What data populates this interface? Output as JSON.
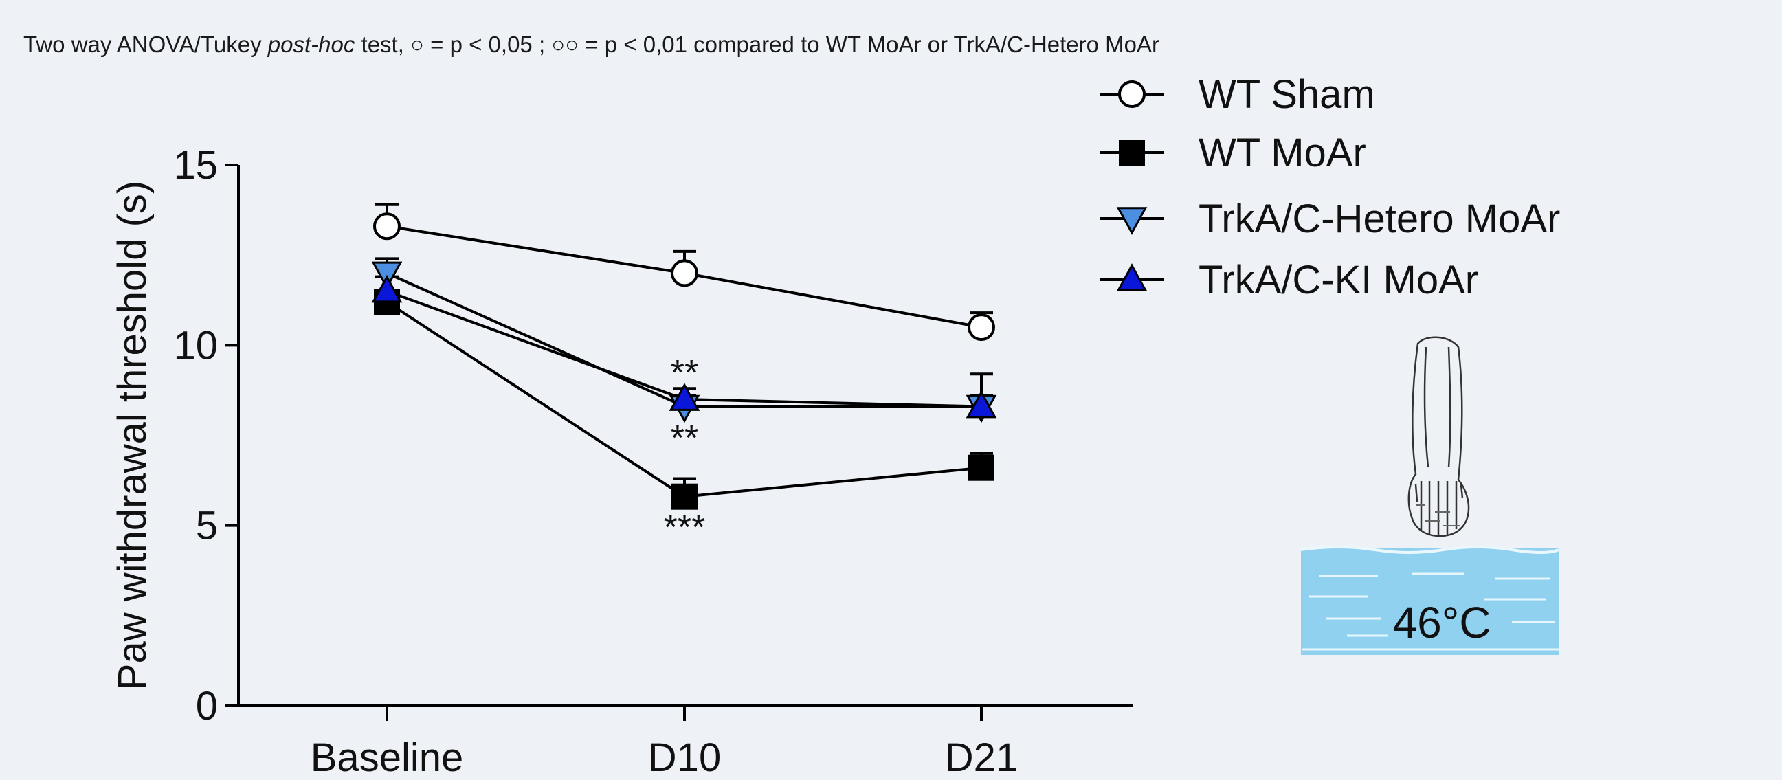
{
  "caption": {
    "part1": "Two way ANOVA/Tukey ",
    "italic": "post-hoc",
    "part2": " test, ○ = p < 0,05 ; ○○ = p < 0,01 compared to WT MoAr or TrkA/C-Hetero MoAr"
  },
  "illustration": {
    "temperature_label": "46°C"
  },
  "colors": {
    "background": "#eef2f6",
    "line": "#000000",
    "hetero_fill": "#4c8fe0",
    "ki_fill": "#0a16d8",
    "water": "#8fd1ef"
  },
  "chart_data": {
    "type": "line",
    "categories": [
      "Baseline",
      "D10",
      "D21"
    ],
    "ylabel": "Paw withdrawal threshold (s)",
    "ylim": [
      0,
      15
    ],
    "yticks": [
      0,
      5,
      10,
      15
    ],
    "grid": false,
    "legend_position": "top-right",
    "series": [
      {
        "name": "WT Sham",
        "marker": "open-circle",
        "values": [
          13.3,
          12.0,
          10.5
        ],
        "errors": [
          0.6,
          0.6,
          0.4
        ]
      },
      {
        "name": "WT MoAr",
        "marker": "filled-square",
        "values": [
          11.2,
          5.8,
          6.6
        ],
        "errors": [
          0.3,
          0.5,
          0.4
        ]
      },
      {
        "name": "TrkA/C-Hetero MoAr",
        "marker": "down-triangle",
        "values": [
          12.0,
          8.3,
          8.3
        ],
        "errors": [
          0.4,
          0.3,
          0.9
        ]
      },
      {
        "name": "TrkA/C-KI MoAr",
        "marker": "up-triangle",
        "values": [
          11.5,
          8.5,
          8.3
        ],
        "errors": [
          0.4,
          0.3,
          0.3
        ]
      }
    ],
    "annotations": [
      {
        "text": "**",
        "category": "D10",
        "anchor": "above"
      },
      {
        "text": "**",
        "category": "D10",
        "anchor": "below-triangle"
      },
      {
        "text": "***",
        "category": "D10",
        "anchor": "below-square"
      }
    ]
  }
}
